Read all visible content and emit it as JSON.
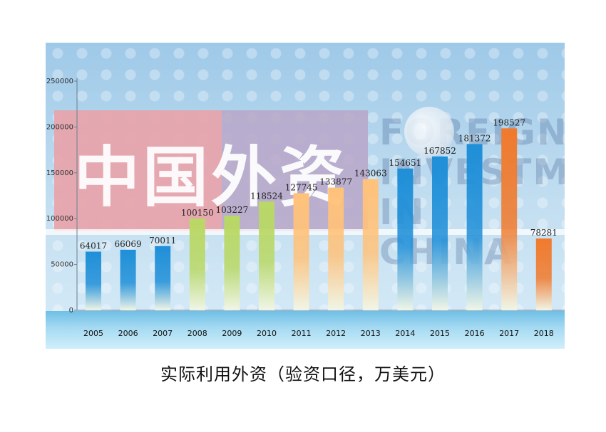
{
  "chart_data": {
    "type": "bar",
    "title": "实际利用外资（验资口径，万美元）",
    "categories": [
      "2005",
      "2006",
      "2007",
      "2008",
      "2009",
      "2010",
      "2011",
      "2012",
      "2013",
      "2014",
      "2015",
      "2016",
      "2017",
      "2018"
    ],
    "values": [
      64017,
      66069,
      70011,
      100150,
      103227,
      118524,
      127745,
      133877,
      143063,
      154651,
      167852,
      181372,
      198527,
      78281
    ],
    "ylim": [
      0,
      250000
    ],
    "yticks": [
      0,
      50000,
      100000,
      150000,
      200000,
      250000
    ],
    "grid": false,
    "bar_colors": [
      "#1f8fd8",
      "#1f8fd8",
      "#1f8fd8",
      "#b9d865",
      "#b9d865",
      "#b9d865",
      "#ffc27a",
      "#ffc27a",
      "#ffc27a",
      "#1f8fd8",
      "#1f8fd8",
      "#1f8fd8",
      "#f07a2d",
      "#f07a2d"
    ]
  },
  "background": {
    "logo_text": "中国外资",
    "english_lines": [
      "FOREIGN",
      "INVESTM",
      "IN CHINA"
    ]
  }
}
